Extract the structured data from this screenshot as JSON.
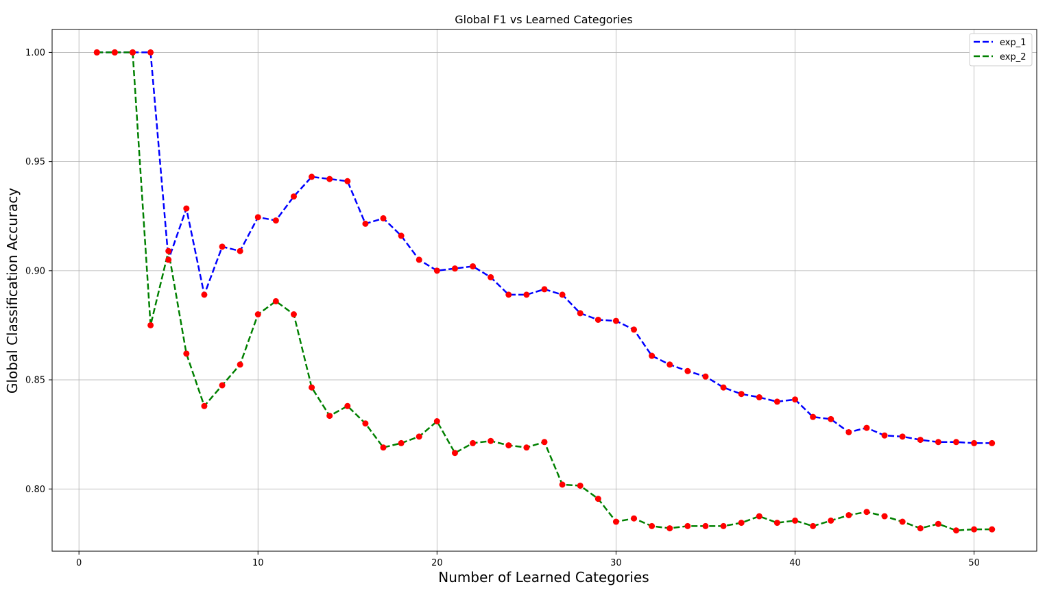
{
  "chart_data": {
    "type": "line",
    "title": "Global F1 vs Learned Categories",
    "xlabel": "Number of Learned Categories",
    "ylabel": "Global Classification Accuracy",
    "xlim": [
      -1.5,
      53.5
    ],
    "ylim": [
      0.7715,
      1.0105
    ],
    "xticks": [
      0,
      10,
      20,
      30,
      40,
      50
    ],
    "yticks": [
      0.8,
      0.85,
      0.9,
      0.95,
      1.0
    ],
    "xtick_labels": [
      "0",
      "10",
      "20",
      "30",
      "40",
      "50"
    ],
    "ytick_labels": [
      "0.80",
      "0.85",
      "0.90",
      "0.95",
      "1.00"
    ],
    "grid": true,
    "legend_position": "top-right",
    "marker_color": "#ff0000",
    "x": [
      1,
      2,
      3,
      4,
      5,
      6,
      7,
      8,
      9,
      10,
      11,
      12,
      13,
      14,
      15,
      16,
      17,
      18,
      19,
      20,
      21,
      22,
      23,
      24,
      25,
      26,
      27,
      28,
      29,
      30,
      31,
      32,
      33,
      34,
      35,
      36,
      37,
      38,
      39,
      40,
      41,
      42,
      43,
      44,
      45,
      46,
      47,
      48,
      49,
      50,
      51
    ],
    "series": [
      {
        "name": "exp_1",
        "color": "#0000ff",
        "style": "dashed",
        "values": [
          1.0,
          1.0,
          1.0,
          1.0,
          0.905,
          0.9285,
          0.889,
          0.911,
          0.909,
          0.9245,
          0.923,
          0.934,
          0.943,
          0.942,
          0.941,
          0.9215,
          0.924,
          0.916,
          0.905,
          0.9,
          0.901,
          0.902,
          0.897,
          0.889,
          0.889,
          0.8915,
          0.889,
          0.8805,
          0.8775,
          0.877,
          0.873,
          0.861,
          0.857,
          0.854,
          0.8515,
          0.8465,
          0.8435,
          0.842,
          0.84,
          0.841,
          0.833,
          0.832,
          0.826,
          0.828,
          0.8245,
          0.824,
          0.8225,
          0.8215,
          0.8215,
          0.821,
          0.821
        ]
      },
      {
        "name": "exp_2",
        "color": "#008000",
        "style": "dashed",
        "values": [
          1.0,
          1.0,
          1.0,
          0.875,
          0.909,
          0.862,
          0.838,
          0.8475,
          0.857,
          0.88,
          0.886,
          0.88,
          0.8465,
          0.8335,
          0.838,
          0.83,
          0.819,
          0.821,
          0.824,
          0.831,
          0.8165,
          0.821,
          0.822,
          0.82,
          0.819,
          0.8215,
          0.802,
          0.8015,
          0.7955,
          0.785,
          0.7865,
          0.783,
          0.782,
          0.783,
          0.783,
          0.783,
          0.7845,
          0.7875,
          0.7845,
          0.7855,
          0.783,
          0.7855,
          0.788,
          0.7895,
          0.7875,
          0.785,
          0.782,
          0.784,
          0.781,
          0.7815,
          0.7815
        ]
      }
    ]
  }
}
